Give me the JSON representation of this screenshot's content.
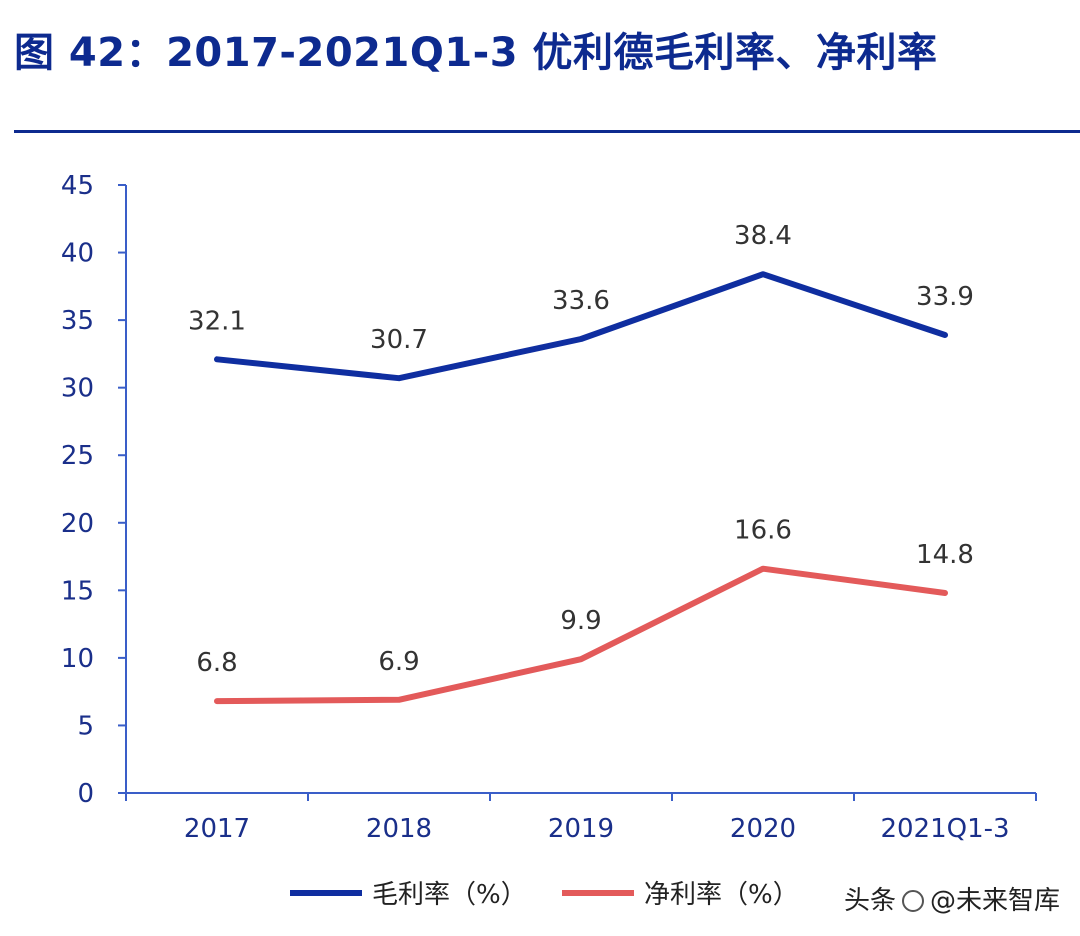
{
  "title": "图 42：2017-2021Q1-3 优利德毛利率、净利率",
  "watermark": {
    "prefix": "头条",
    "at": "@",
    "name": "未来智库"
  },
  "colors": {
    "title": "#0d2a8f",
    "gross": "#0f2ea0",
    "net": "#e35a5a",
    "axis": "#3a5ec8",
    "tick_text": "#1a2f8a"
  },
  "chart_data": {
    "type": "line",
    "title": "",
    "xlabel": "",
    "ylabel": "",
    "categories": [
      "2017",
      "2018",
      "2019",
      "2020",
      "2021Q1-3"
    ],
    "ylim": [
      0,
      45
    ],
    "yticks": [
      "0",
      "5",
      "10",
      "15",
      "20",
      "25",
      "30",
      "35",
      "40",
      "45"
    ],
    "grid": false,
    "legend_position": "bottom",
    "series": [
      {
        "name": "毛利率（%）",
        "values": [
          32.1,
          30.7,
          33.6,
          38.4,
          33.9
        ],
        "labels": [
          "32.1",
          "30.7",
          "33.6",
          "38.4",
          "33.9"
        ]
      },
      {
        "name": "净利率（%）",
        "values": [
          6.8,
          6.9,
          9.9,
          16.6,
          14.8
        ],
        "labels": [
          "6.8",
          "6.9",
          "9.9",
          "16.6",
          "14.8"
        ]
      }
    ]
  }
}
